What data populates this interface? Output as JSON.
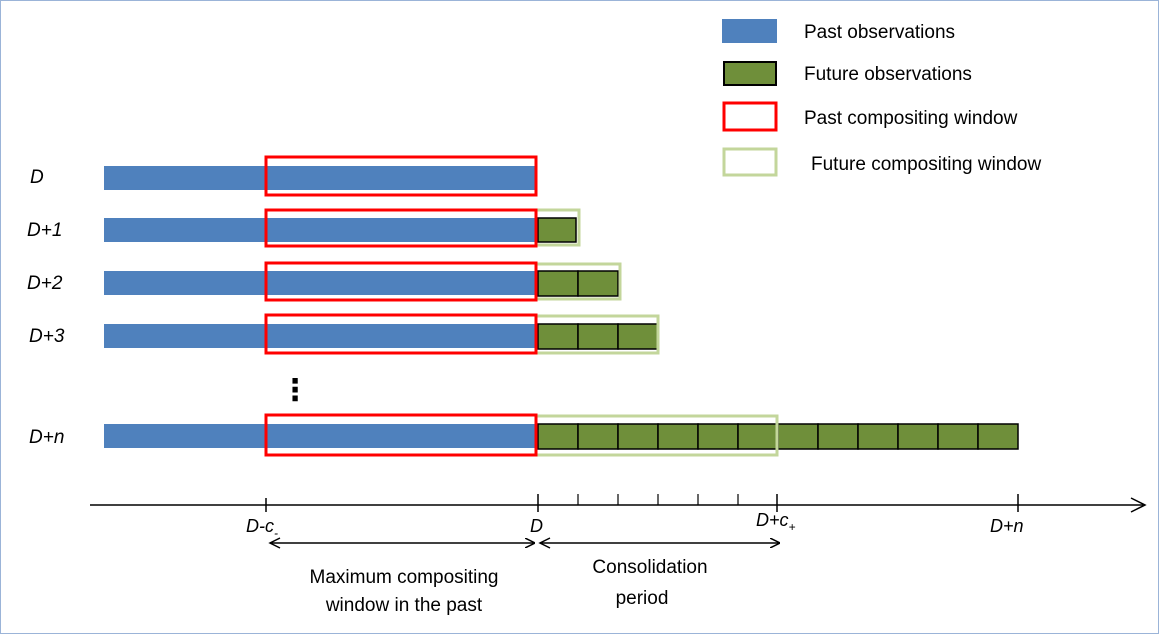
{
  "legend": {
    "items": [
      {
        "label": "Past observations",
        "swatch": "past"
      },
      {
        "label": "Future observations",
        "swatch": "future"
      },
      {
        "label": "Past compositing window",
        "swatch": "past-window"
      },
      {
        "label": "Future compositing window",
        "swatch": "future-window"
      }
    ]
  },
  "rows": [
    {
      "label": "D",
      "future_cells": 0
    },
    {
      "label": "D+1",
      "future_cells": 1
    },
    {
      "label": "D+2",
      "future_cells": 2
    },
    {
      "label": "D+3",
      "future_cells": 3
    },
    {
      "label": "D+n",
      "future_cells": 12
    }
  ],
  "ellipsis": "⋮",
  "axis": {
    "ticks": [
      {
        "base": "D-c",
        "sub": "-"
      },
      {
        "base": "D",
        "sub": ""
      },
      {
        "base": "D+c",
        "sub": "+"
      },
      {
        "base": "D+n",
        "sub": ""
      }
    ]
  },
  "captions": {
    "past": [
      "Maximum compositing",
      "window in the past"
    ],
    "consolidation": [
      "Consolidation",
      "period"
    ]
  },
  "colors": {
    "past": "#4f81bd",
    "future": "#6f8f3a",
    "past_window": "#ff0000",
    "future_window": "#c3d69b",
    "cell_border": "#000000"
  }
}
